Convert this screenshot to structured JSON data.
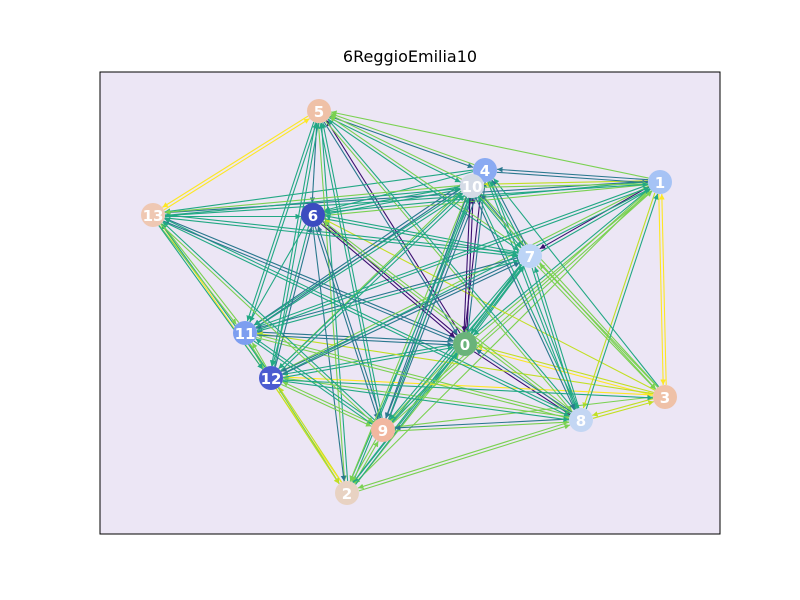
{
  "title": "6ReggioEmilia10",
  "background_color": "#ece6f5",
  "edge_colors": [
    "#3b0f70",
    "#2a788e",
    "#22a884",
    "#7ad151",
    "#c2df23",
    "#fde725"
  ],
  "nodes": [
    {
      "id": "0",
      "label": "0",
      "color": "#6ab37a"
    },
    {
      "id": "1",
      "label": "1",
      "color": "#a6c3f5"
    },
    {
      "id": "2",
      "label": "2",
      "color": "#e8d2c2"
    },
    {
      "id": "3",
      "label": "3",
      "color": "#efc1a7"
    },
    {
      "id": "4",
      "label": "4",
      "color": "#8aaaf2"
    },
    {
      "id": "5",
      "label": "5",
      "color": "#efc1a7"
    },
    {
      "id": "6",
      "label": "6",
      "color": "#3b4cc0"
    },
    {
      "id": "7",
      "label": "7",
      "color": "#bcd4f6"
    },
    {
      "id": "8",
      "label": "8",
      "color": "#c3d6f3"
    },
    {
      "id": "9",
      "label": "9",
      "color": "#f1b7a0"
    },
    {
      "id": "10",
      "label": "10",
      "color": "#d5dbe6"
    },
    {
      "id": "11",
      "label": "11",
      "color": "#7d9ef0"
    },
    {
      "id": "12",
      "label": "12",
      "color": "#4a5bd0"
    },
    {
      "id": "13",
      "label": "13",
      "color": "#efc8b3"
    }
  ],
  "edges": [
    [
      "0",
      "1",
      3
    ],
    [
      "0",
      "2",
      2
    ],
    [
      "0",
      "3",
      5
    ],
    [
      "0",
      "4",
      1
    ],
    [
      "0",
      "5",
      0
    ],
    [
      "0",
      "6",
      0
    ],
    [
      "0",
      "7",
      2
    ],
    [
      "0",
      "8",
      0
    ],
    [
      "0",
      "9",
      3
    ],
    [
      "0",
      "10",
      0
    ],
    [
      "0",
      "11",
      1
    ],
    [
      "0",
      "12",
      2
    ],
    [
      "0",
      "13",
      1
    ],
    [
      "1",
      "0",
      2
    ],
    [
      "1",
      "2",
      3
    ],
    [
      "1",
      "3",
      5
    ],
    [
      "1",
      "4",
      1
    ],
    [
      "1",
      "5",
      3
    ],
    [
      "1",
      "6",
      2
    ],
    [
      "1",
      "7",
      0
    ],
    [
      "1",
      "8",
      4
    ],
    [
      "1",
      "9",
      3
    ],
    [
      "1",
      "10",
      4
    ],
    [
      "1",
      "11",
      2
    ],
    [
      "1",
      "12",
      3
    ],
    [
      "1",
      "13",
      1
    ],
    [
      "2",
      "0",
      3
    ],
    [
      "2",
      "5",
      2
    ],
    [
      "2",
      "7",
      2
    ],
    [
      "2",
      "8",
      3
    ],
    [
      "2",
      "9",
      3
    ],
    [
      "2",
      "10",
      2
    ],
    [
      "2",
      "12",
      4
    ],
    [
      "2",
      "13",
      5
    ],
    [
      "3",
      "0",
      4
    ],
    [
      "3",
      "1",
      5
    ],
    [
      "3",
      "4",
      2
    ],
    [
      "3",
      "6",
      4
    ],
    [
      "3",
      "7",
      3
    ],
    [
      "3",
      "8",
      4
    ],
    [
      "3",
      "9",
      3
    ],
    [
      "3",
      "10",
      3
    ],
    [
      "3",
      "11",
      4
    ],
    [
      "3",
      "12",
      5
    ],
    [
      "4",
      "0",
      0
    ],
    [
      "4",
      "1",
      1
    ],
    [
      "4",
      "2",
      2
    ],
    [
      "4",
      "5",
      3
    ],
    [
      "4",
      "6",
      2
    ],
    [
      "4",
      "7",
      2
    ],
    [
      "4",
      "8",
      2
    ],
    [
      "4",
      "9",
      1
    ],
    [
      "4",
      "11",
      1
    ],
    [
      "4",
      "12",
      3
    ],
    [
      "4",
      "13",
      2
    ],
    [
      "5",
      "0",
      1
    ],
    [
      "5",
      "2",
      3
    ],
    [
      "5",
      "4",
      1
    ],
    [
      "5",
      "6",
      1
    ],
    [
      "5",
      "7",
      2
    ],
    [
      "5",
      "8",
      3
    ],
    [
      "5",
      "9",
      2
    ],
    [
      "5",
      "10",
      2
    ],
    [
      "5",
      "11",
      2
    ],
    [
      "5",
      "12",
      2
    ],
    [
      "5",
      "13",
      5
    ],
    [
      "6",
      "0",
      0
    ],
    [
      "6",
      "1",
      3
    ],
    [
      "6",
      "2",
      1
    ],
    [
      "6",
      "7",
      2
    ],
    [
      "6",
      "8",
      3
    ],
    [
      "6",
      "9",
      1
    ],
    [
      "6",
      "10",
      2
    ],
    [
      "6",
      "11",
      2
    ],
    [
      "6",
      "12",
      2
    ],
    [
      "7",
      "0",
      2
    ],
    [
      "7",
      "1",
      2
    ],
    [
      "7",
      "2",
      2
    ],
    [
      "7",
      "3",
      3
    ],
    [
      "7",
      "4",
      1
    ],
    [
      "7",
      "5",
      3
    ],
    [
      "7",
      "6",
      2
    ],
    [
      "7",
      "8",
      2
    ],
    [
      "7",
      "9",
      2
    ],
    [
      "7",
      "10",
      1
    ],
    [
      "7",
      "11",
      1
    ],
    [
      "7",
      "12",
      1
    ],
    [
      "7",
      "13",
      2
    ],
    [
      "8",
      "0",
      1
    ],
    [
      "8",
      "1",
      2
    ],
    [
      "8",
      "2",
      3
    ],
    [
      "8",
      "3",
      4
    ],
    [
      "8",
      "4",
      2
    ],
    [
      "8",
      "5",
      2
    ],
    [
      "8",
      "6",
      3
    ],
    [
      "8",
      "7",
      2
    ],
    [
      "8",
      "9",
      1
    ],
    [
      "8",
      "10",
      2
    ],
    [
      "8",
      "11",
      3
    ],
    [
      "8",
      "12",
      3
    ],
    [
      "8",
      "13",
      2
    ],
    [
      "9",
      "0",
      2
    ],
    [
      "9",
      "1",
      3
    ],
    [
      "9",
      "2",
      3
    ],
    [
      "9",
      "4",
      1
    ],
    [
      "9",
      "5",
      2
    ],
    [
      "9",
      "6",
      1
    ],
    [
      "9",
      "7",
      2
    ],
    [
      "9",
      "8",
      3
    ],
    [
      "9",
      "10",
      2
    ],
    [
      "9",
      "11",
      2
    ],
    [
      "9",
      "12",
      3
    ],
    [
      "9",
      "13",
      2
    ],
    [
      "10",
      "0",
      0
    ],
    [
      "10",
      "1",
      3
    ],
    [
      "10",
      "2",
      3
    ],
    [
      "10",
      "3",
      3
    ],
    [
      "10",
      "5",
      3
    ],
    [
      "10",
      "6",
      2
    ],
    [
      "10",
      "7",
      2
    ],
    [
      "10",
      "8",
      1
    ],
    [
      "10",
      "9",
      1
    ],
    [
      "10",
      "11",
      2
    ],
    [
      "10",
      "12",
      2
    ],
    [
      "10",
      "13",
      3
    ],
    [
      "11",
      "0",
      1
    ],
    [
      "11",
      "1",
      2
    ],
    [
      "11",
      "2",
      3
    ],
    [
      "11",
      "4",
      1
    ],
    [
      "11",
      "5",
      2
    ],
    [
      "11",
      "7",
      2
    ],
    [
      "11",
      "8",
      3
    ],
    [
      "11",
      "9",
      2
    ],
    [
      "11",
      "10",
      2
    ],
    [
      "11",
      "12",
      3
    ],
    [
      "11",
      "13",
      3
    ],
    [
      "12",
      "0",
      2
    ],
    [
      "12",
      "1",
      2
    ],
    [
      "12",
      "2",
      4
    ],
    [
      "12",
      "3",
      2
    ],
    [
      "12",
      "5",
      2
    ],
    [
      "12",
      "6",
      1
    ],
    [
      "12",
      "7",
      1
    ],
    [
      "12",
      "8",
      2
    ],
    [
      "12",
      "9",
      3
    ],
    [
      "12",
      "10",
      2
    ],
    [
      "12",
      "11",
      3
    ],
    [
      "12",
      "13",
      2
    ],
    [
      "13",
      "0",
      1
    ],
    [
      "13",
      "1",
      2
    ],
    [
      "13",
      "5",
      5
    ],
    [
      "13",
      "6",
      2
    ],
    [
      "13",
      "8",
      2
    ],
    [
      "13",
      "9",
      3
    ],
    [
      "13",
      "10",
      2
    ],
    [
      "13",
      "11",
      3
    ],
    [
      "13",
      "12",
      2
    ],
    [
      "13",
      "7",
      2
    ]
  ]
}
